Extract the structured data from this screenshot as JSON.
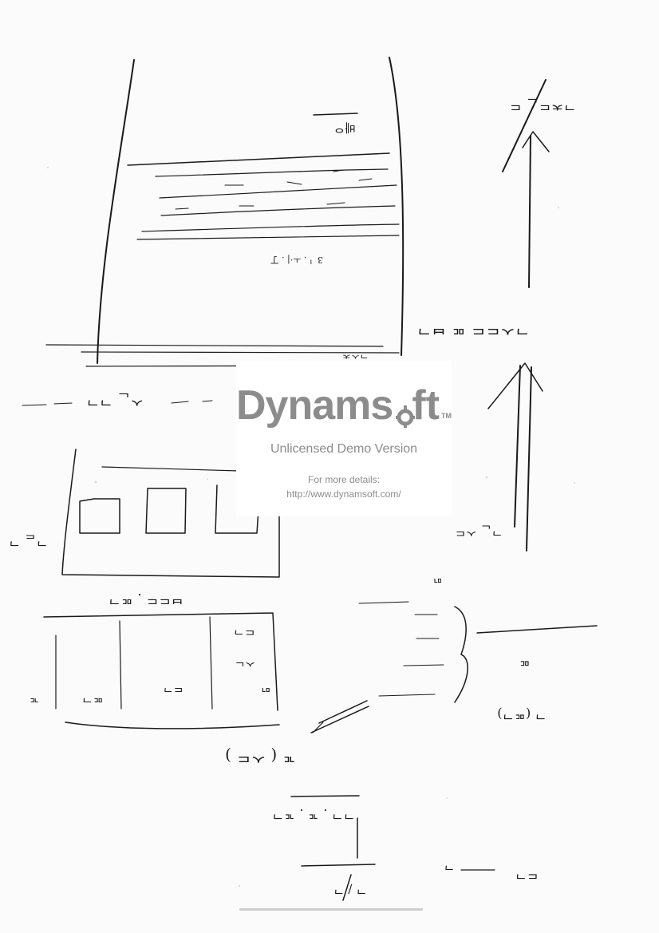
{
  "watermark": {
    "brand_prefix": "Dynams",
    "brand_suffix": "ft",
    "trademark": "TM",
    "subtitle": "Unlicensed Demo Version",
    "details_label": "For more details:",
    "url": "http://www.dynamsoft.com/",
    "color": "#8c8c8c"
  },
  "page": {
    "background": "#fbfbfb",
    "ink_color": "#1a1a1a"
  }
}
